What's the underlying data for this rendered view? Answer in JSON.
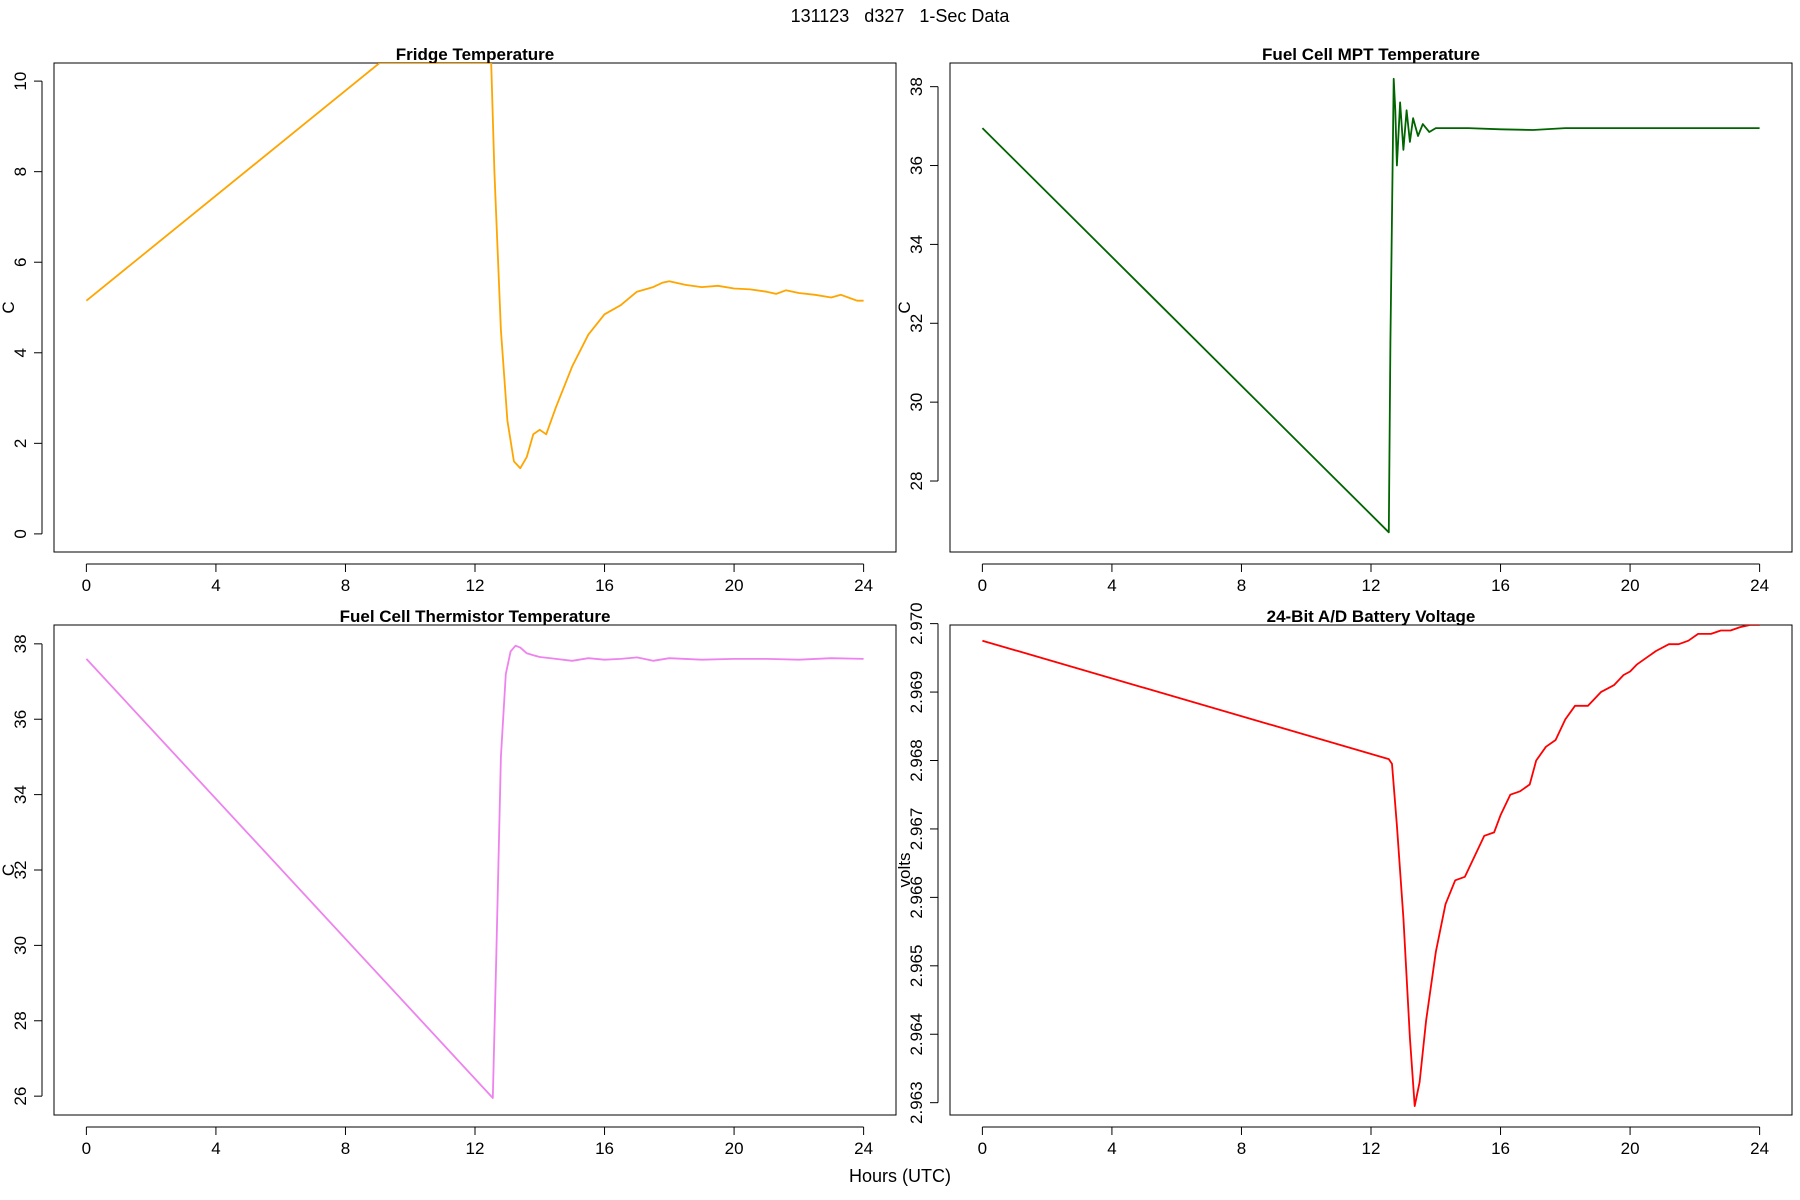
{
  "figure": {
    "title": "131123   d327   1-Sec Data",
    "xlabel": "Hours (UTC)"
  },
  "chart_data": [
    {
      "type": "line",
      "title": "Fridge Temperature",
      "xlabel": "Hours (UTC)",
      "ylabel": "C",
      "color": "#ffa500",
      "xlim": [
        -1,
        25
      ],
      "ylim": [
        -0.4,
        10.4
      ],
      "xticks": [
        0,
        4,
        8,
        12,
        16,
        20,
        24
      ],
      "yticks": [
        0,
        2,
        4,
        6,
        8,
        10
      ],
      "series": [
        {
          "name": "Fridge Temperature",
          "x": [
            0,
            9.05,
            12.5,
            12.6,
            12.8,
            13.0,
            13.2,
            13.4,
            13.6,
            13.8,
            14.0,
            14.2,
            14.5,
            15.0,
            15.5,
            16.0,
            16.5,
            17.0,
            17.5,
            17.8,
            18.0,
            18.5,
            19.0,
            19.5,
            20.0,
            20.5,
            21.0,
            21.3,
            21.6,
            22.0,
            22.5,
            23.0,
            23.3,
            23.6,
            23.8,
            24.0
          ],
          "y": [
            5.15,
            10.4,
            10.4,
            8.0,
            4.5,
            2.5,
            1.6,
            1.45,
            1.7,
            2.2,
            2.3,
            2.2,
            2.8,
            3.7,
            4.4,
            4.85,
            5.05,
            5.35,
            5.45,
            5.55,
            5.58,
            5.5,
            5.45,
            5.48,
            5.42,
            5.4,
            5.35,
            5.3,
            5.38,
            5.32,
            5.28,
            5.22,
            5.28,
            5.2,
            5.15,
            5.15
          ]
        }
      ]
    },
    {
      "type": "line",
      "title": "Fuel Cell MPT Temperature",
      "xlabel": "Hours (UTC)",
      "ylabel": "C",
      "color": "#006400",
      "xlim": [
        -1,
        25
      ],
      "ylim": [
        26.2,
        38.6
      ],
      "xticks": [
        0,
        4,
        8,
        12,
        16,
        20,
        24
      ],
      "yticks": [
        28,
        30,
        32,
        34,
        36,
        38
      ],
      "series": [
        {
          "name": "Fuel Cell MPT Temperature",
          "x": [
            0,
            12.55,
            12.6,
            12.7,
            12.75,
            12.8,
            12.9,
            13.0,
            13.1,
            13.2,
            13.3,
            13.45,
            13.6,
            13.8,
            14.0,
            15.0,
            16.0,
            17.0,
            18.0,
            20.0,
            22.0,
            24.0
          ],
          "y": [
            36.95,
            26.7,
            31.5,
            38.2,
            37.4,
            36.0,
            37.6,
            36.4,
            37.4,
            36.6,
            37.2,
            36.75,
            37.05,
            36.85,
            36.95,
            36.95,
            36.92,
            36.9,
            36.95,
            36.95,
            36.95,
            36.95
          ]
        }
      ]
    },
    {
      "type": "line",
      "title": "Fuel Cell Thermistor Temperature",
      "xlabel": "Hours (UTC)",
      "ylabel": "C",
      "color": "#ee82ee",
      "xlim": [
        -1,
        25
      ],
      "ylim": [
        25.5,
        38.5
      ],
      "xticks": [
        0,
        4,
        8,
        12,
        16,
        20,
        24
      ],
      "yticks": [
        26,
        28,
        30,
        32,
        34,
        36,
        38
      ],
      "series": [
        {
          "name": "Fuel Cell Thermistor Temperature",
          "x": [
            0,
            12.55,
            12.65,
            12.8,
            12.95,
            13.1,
            13.25,
            13.4,
            13.6,
            13.8,
            14.0,
            14.5,
            15.0,
            15.5,
            16.0,
            16.5,
            17.0,
            17.5,
            18.0,
            19.0,
            20.0,
            21.0,
            22.0,
            23.0,
            24.0
          ],
          "y": [
            37.6,
            25.95,
            29.5,
            35.0,
            37.2,
            37.8,
            37.95,
            37.9,
            37.75,
            37.7,
            37.65,
            37.6,
            37.55,
            37.62,
            37.58,
            37.6,
            37.64,
            37.55,
            37.62,
            37.58,
            37.6,
            37.6,
            37.58,
            37.62,
            37.6
          ]
        }
      ]
    },
    {
      "type": "line",
      "title": "24-Bit A/D Battery Voltage",
      "xlabel": "Hours (UTC)",
      "ylabel": "volts",
      "color": "#ff0000",
      "xlim": [
        -1,
        25
      ],
      "ylim": [
        2.96282,
        2.96998
      ],
      "xticks": [
        0,
        4,
        8,
        12,
        16,
        20,
        24
      ],
      "yticks": [
        2.963,
        2.964,
        2.965,
        2.966,
        2.967,
        2.968,
        2.969,
        2.97
      ],
      "series": [
        {
          "name": "24-Bit A/D Battery Voltage",
          "x": [
            0,
            12.55,
            12.65,
            12.8,
            13.0,
            13.2,
            13.35,
            13.5,
            13.7,
            14.0,
            14.3,
            14.6,
            14.9,
            15.2,
            15.5,
            15.8,
            16.0,
            16.3,
            16.6,
            16.9,
            17.1,
            17.4,
            17.7,
            18.0,
            18.3,
            18.7,
            19.1,
            19.5,
            19.8,
            20.0,
            20.2,
            20.5,
            20.8,
            21.2,
            21.5,
            21.8,
            22.1,
            22.5,
            22.8,
            23.1,
            23.4,
            23.7,
            24.0
          ],
          "y": [
            2.96975,
            2.96802,
            2.96795,
            2.96705,
            2.9657,
            2.96395,
            2.96295,
            2.9633,
            2.9642,
            2.9652,
            2.9659,
            2.96625,
            2.9663,
            2.9666,
            2.9669,
            2.96695,
            2.9672,
            2.9675,
            2.96755,
            2.96765,
            2.968,
            2.9682,
            2.9683,
            2.9686,
            2.9688,
            2.9688,
            2.969,
            2.9691,
            2.96925,
            2.9693,
            2.9694,
            2.9695,
            2.9696,
            2.9697,
            2.9697,
            2.96975,
            2.96985,
            2.96985,
            2.9699,
            2.9699,
            2.96995,
            2.96998,
            2.96998
          ]
        }
      ]
    }
  ]
}
